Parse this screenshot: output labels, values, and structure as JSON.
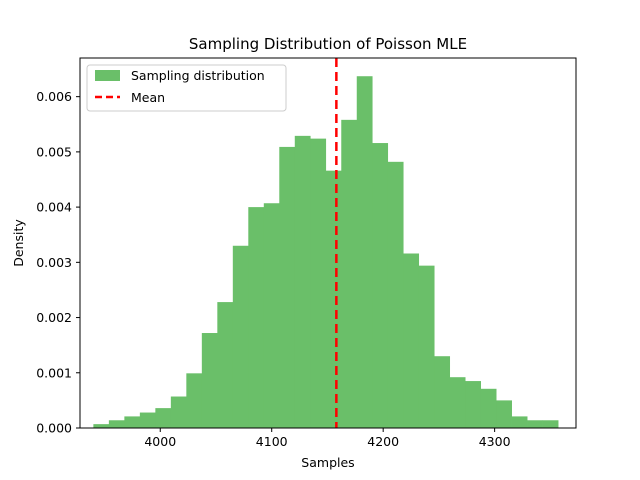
{
  "chart_data": {
    "type": "bar",
    "title": "Sampling Distribution of Poisson MLE",
    "xlabel": "Samples",
    "ylabel": "Density",
    "xlim": [
      3928,
      4373
    ],
    "ylim": [
      0,
      0.0067
    ],
    "xticks": [
      4000,
      4100,
      4200,
      4300
    ],
    "xtick_labels": [
      "4000",
      "4100",
      "4200",
      "4300"
    ],
    "yticks": [
      0,
      0.001,
      0.002,
      0.003,
      0.004,
      0.005,
      0.006
    ],
    "ytick_labels": [
      "0.000",
      "0.001",
      "0.002",
      "0.003",
      "0.004",
      "0.005",
      "0.006"
    ],
    "grid": false,
    "legend_position": "top-left",
    "histogram": {
      "name": "Sampling distribution",
      "color": "#6abf69",
      "bin_start": 3940,
      "bin_width": 13.9,
      "densities": [
        7e-05,
        0.00014,
        0.00021,
        0.00028,
        0.00036,
        0.00057,
        0.00099,
        0.00172,
        0.00228,
        0.0033,
        0.004,
        0.00407,
        0.00509,
        0.00529,
        0.00524,
        0.00466,
        0.00558,
        0.00637,
        0.00516,
        0.00482,
        0.00316,
        0.00294,
        0.0013,
        0.00092,
        0.00085,
        0.00071,
        0.0005,
        0.00021,
        0.00014,
        0.00014
      ]
    },
    "mean_line": {
      "name": "Mean",
      "x": 4158,
      "color": "#ff0000",
      "style": "dashed"
    }
  }
}
